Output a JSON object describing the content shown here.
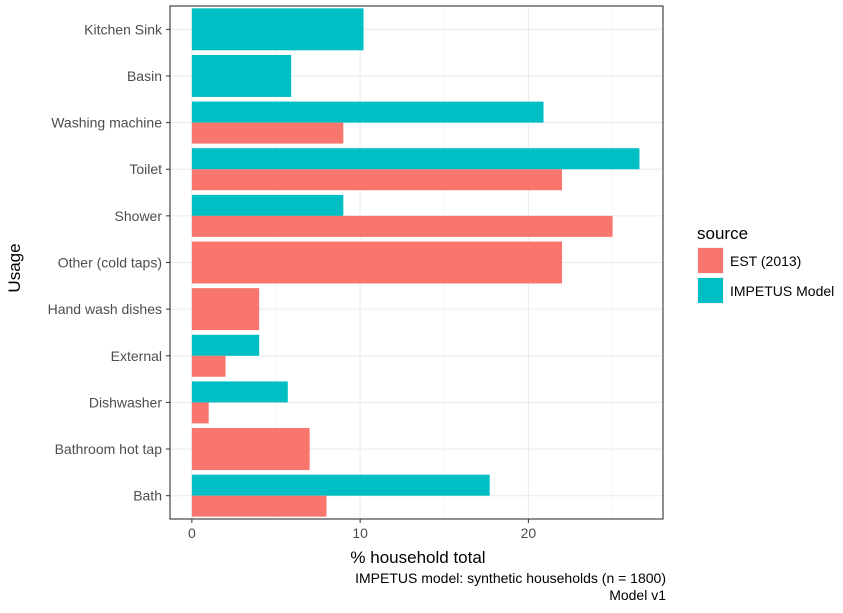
{
  "chart_data": {
    "type": "bar",
    "orientation": "horizontal",
    "categories": [
      "Kitchen Sink",
      "Basin",
      "Washing machine",
      "Toilet",
      "Shower",
      "Other (cold taps)",
      "Hand wash dishes",
      "External",
      "Dishwasher",
      "Bathroom hot tap",
      "Bath"
    ],
    "series": [
      {
        "name": "EST (2013)",
        "color": "#F8766D",
        "values": [
          null,
          null,
          9.0,
          22.0,
          25.0,
          22.0,
          4.0,
          2.0,
          1.0,
          7.0,
          8.0
        ]
      },
      {
        "name": "IMPETUS Model",
        "color": "#00BFC4",
        "values": [
          10.2,
          5.9,
          20.9,
          26.6,
          9.0,
          null,
          null,
          4.0,
          5.7,
          null,
          17.7
        ]
      }
    ],
    "xlabel": "% household total",
    "ylabel": "Usage",
    "x_ticks": [
      "0",
      "10",
      "20"
    ],
    "xlim": [
      -1.3,
      28.0
    ],
    "grid": true,
    "legend": {
      "title": "source",
      "position": "right"
    },
    "caption": [
      "IMPETUS model: synthetic households (n = 1800)",
      "Model v1"
    ]
  }
}
